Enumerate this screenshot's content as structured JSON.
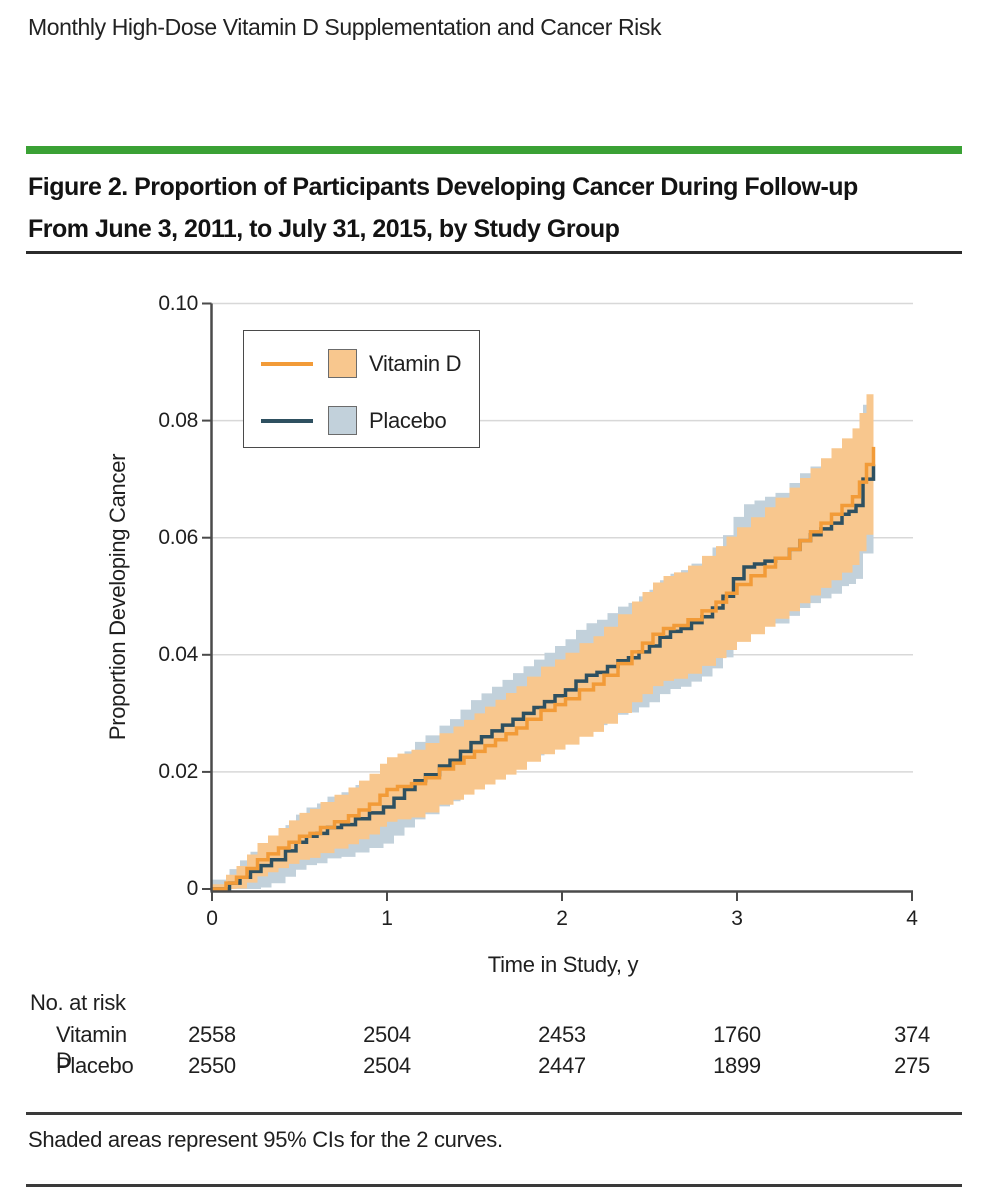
{
  "page": {
    "title": "Monthly High-Dose Vitamin D Supplementation and Cancer Risk"
  },
  "figure": {
    "title_line1": "Figure 2. Proportion of Participants Developing Cancer During Follow-up",
    "title_line2": "From June 3, 2011, to July 31, 2015, by Study Group"
  },
  "chart_data": {
    "type": "line",
    "subtype": "step-cumulative-incidence-with-ci-bands",
    "title": "Proportion of Participants Developing Cancer During Follow-up by Study Group",
    "xlabel": "Time in Study, y",
    "ylabel": "Proportion Developing Cancer",
    "xlim": [
      0,
      4
    ],
    "ylim": [
      0,
      0.1
    ],
    "grid": "horizontal",
    "legend_position": "upper-left-inside",
    "xticks": [
      {
        "value": 0,
        "label": "0"
      },
      {
        "value": 1,
        "label": "1"
      },
      {
        "value": 2,
        "label": "2"
      },
      {
        "value": 3,
        "label": "3"
      },
      {
        "value": 4,
        "label": "4"
      }
    ],
    "yticks": [
      {
        "value": 0,
        "label": "0"
      },
      {
        "value": 0.02,
        "label": "0.02"
      },
      {
        "value": 0.04,
        "label": "0.04"
      },
      {
        "value": 0.06,
        "label": "0.06"
      },
      {
        "value": 0.08,
        "label": "0.08"
      },
      {
        "value": 0.1,
        "label": "0.10"
      }
    ],
    "colors": {
      "green_bar": "#3AA135",
      "vitamind_line": "#F29B38",
      "vitamind_band": "#F8C78E",
      "placebo_line": "#2E5060",
      "placebo_band": "#C2D1DB",
      "gridline": "#D8D8D8",
      "axis": "#4A4A4A"
    },
    "ci_halfwidth": [
      [
        0,
        0.0008
      ],
      [
        0.25,
        0.0028
      ],
      [
        0.5,
        0.004
      ],
      [
        1,
        0.0055
      ],
      [
        1.5,
        0.0065
      ],
      [
        2,
        0.0078
      ],
      [
        2.5,
        0.0088
      ],
      [
        3,
        0.0098
      ],
      [
        3.4,
        0.0108
      ],
      [
        3.7,
        0.0118
      ],
      [
        3.78,
        0.0122
      ]
    ],
    "placebo_band_extra": 0.0008,
    "series": [
      {
        "name": "Vitamin D",
        "points": [
          [
            0,
            0
          ],
          [
            0.08,
            0.001
          ],
          [
            0.14,
            0.002
          ],
          [
            0.2,
            0.0035
          ],
          [
            0.26,
            0.005
          ],
          [
            0.32,
            0.006
          ],
          [
            0.38,
            0.007
          ],
          [
            0.44,
            0.008
          ],
          [
            0.5,
            0.009
          ],
          [
            0.56,
            0.0095
          ],
          [
            0.62,
            0.0105
          ],
          [
            0.7,
            0.0115
          ],
          [
            0.78,
            0.0125
          ],
          [
            0.84,
            0.0135
          ],
          [
            0.9,
            0.0145
          ],
          [
            0.96,
            0.016
          ],
          [
            1.0,
            0.017
          ],
          [
            1.06,
            0.0175
          ],
          [
            1.14,
            0.018
          ],
          [
            1.22,
            0.019
          ],
          [
            1.3,
            0.0205
          ],
          [
            1.38,
            0.0215
          ],
          [
            1.44,
            0.0225
          ],
          [
            1.5,
            0.0235
          ],
          [
            1.56,
            0.0245
          ],
          [
            1.62,
            0.0255
          ],
          [
            1.68,
            0.0265
          ],
          [
            1.74,
            0.0275
          ],
          [
            1.8,
            0.029
          ],
          [
            1.88,
            0.0305
          ],
          [
            1.96,
            0.0315
          ],
          [
            2.02,
            0.0325
          ],
          [
            2.1,
            0.034
          ],
          [
            2.18,
            0.035
          ],
          [
            2.24,
            0.0365
          ],
          [
            2.32,
            0.0385
          ],
          [
            2.4,
            0.0405
          ],
          [
            2.46,
            0.042
          ],
          [
            2.52,
            0.0435
          ],
          [
            2.58,
            0.0445
          ],
          [
            2.64,
            0.045
          ],
          [
            2.72,
            0.046
          ],
          [
            2.8,
            0.0475
          ],
          [
            2.88,
            0.049
          ],
          [
            2.94,
            0.0505
          ],
          [
            3.0,
            0.052
          ],
          [
            3.08,
            0.0535
          ],
          [
            3.16,
            0.055
          ],
          [
            3.22,
            0.0565
          ],
          [
            3.3,
            0.058
          ],
          [
            3.36,
            0.0595
          ],
          [
            3.42,
            0.061
          ],
          [
            3.48,
            0.0625
          ],
          [
            3.54,
            0.064
          ],
          [
            3.6,
            0.0655
          ],
          [
            3.66,
            0.067
          ],
          [
            3.7,
            0.0695
          ],
          [
            3.74,
            0.0725
          ],
          [
            3.78,
            0.0755
          ]
        ]
      },
      {
        "name": "Placebo",
        "points": [
          [
            0,
            0
          ],
          [
            0.1,
            0.001
          ],
          [
            0.16,
            0.002
          ],
          [
            0.22,
            0.003
          ],
          [
            0.28,
            0.004
          ],
          [
            0.34,
            0.005
          ],
          [
            0.42,
            0.0065
          ],
          [
            0.48,
            0.008
          ],
          [
            0.54,
            0.009
          ],
          [
            0.6,
            0.0095
          ],
          [
            0.66,
            0.0105
          ],
          [
            0.74,
            0.011
          ],
          [
            0.82,
            0.012
          ],
          [
            0.9,
            0.013
          ],
          [
            0.98,
            0.014
          ],
          [
            1.04,
            0.0155
          ],
          [
            1.1,
            0.017
          ],
          [
            1.16,
            0.0185
          ],
          [
            1.22,
            0.0195
          ],
          [
            1.3,
            0.021
          ],
          [
            1.36,
            0.022
          ],
          [
            1.42,
            0.0235
          ],
          [
            1.48,
            0.025
          ],
          [
            1.54,
            0.026
          ],
          [
            1.6,
            0.027
          ],
          [
            1.66,
            0.028
          ],
          [
            1.72,
            0.029
          ],
          [
            1.78,
            0.03
          ],
          [
            1.84,
            0.031
          ],
          [
            1.9,
            0.032
          ],
          [
            1.96,
            0.033
          ],
          [
            2.02,
            0.034
          ],
          [
            2.08,
            0.0355
          ],
          [
            2.14,
            0.0365
          ],
          [
            2.2,
            0.037
          ],
          [
            2.26,
            0.038
          ],
          [
            2.32,
            0.039
          ],
          [
            2.38,
            0.0395
          ],
          [
            2.44,
            0.0405
          ],
          [
            2.5,
            0.0415
          ],
          [
            2.56,
            0.043
          ],
          [
            2.62,
            0.044
          ],
          [
            2.68,
            0.0445
          ],
          [
            2.74,
            0.0455
          ],
          [
            2.8,
            0.0465
          ],
          [
            2.86,
            0.048
          ],
          [
            2.92,
            0.05
          ],
          [
            2.98,
            0.053
          ],
          [
            3.04,
            0.055
          ],
          [
            3.1,
            0.0555
          ],
          [
            3.16,
            0.056
          ],
          [
            3.22,
            0.0565
          ],
          [
            3.3,
            0.058
          ],
          [
            3.36,
            0.0595
          ],
          [
            3.42,
            0.0605
          ],
          [
            3.48,
            0.0615
          ],
          [
            3.54,
            0.0625
          ],
          [
            3.6,
            0.064
          ],
          [
            3.64,
            0.0645
          ],
          [
            3.68,
            0.0655
          ],
          [
            3.72,
            0.07
          ],
          [
            3.78,
            0.0725
          ]
        ]
      }
    ]
  },
  "risk_table": {
    "header": "No. at risk",
    "rows": [
      {
        "label": "Vitamin D",
        "values": [
          "2558",
          "2504",
          "2453",
          "1760",
          "374"
        ]
      },
      {
        "label": "Placebo",
        "values": [
          "2550",
          "2504",
          "2447",
          "1899",
          "275"
        ]
      }
    ]
  },
  "footnote": "Shaded areas represent 95% CIs for the 2 curves."
}
